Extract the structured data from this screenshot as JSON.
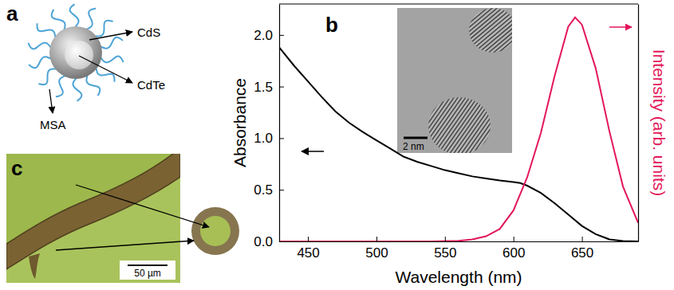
{
  "chart_data": {
    "type": "line",
    "panel_label": "b",
    "x_label": "Wavelength (nm)",
    "y_label": "Absorbance",
    "y2_label": "Intensity (arb. units)",
    "xlim": [
      429,
      691
    ],
    "xticks": [
      450,
      500,
      550,
      600,
      650
    ],
    "ylim": [
      0,
      2.3
    ],
    "yticks": [
      {
        "value": 0,
        "label": "0.0"
      },
      {
        "value": 0.5,
        "label": "0.5"
      },
      {
        "value": 1,
        "label": "1.0"
      },
      {
        "value": 1.5,
        "label": "1.5"
      },
      {
        "value": 2,
        "label": "2.0"
      }
    ],
    "y2lim": [
      0,
      2.3
    ],
    "series": [
      {
        "color": "#000000",
        "x": [
          429,
          440,
          450,
          460,
          470,
          480,
          490,
          500,
          510,
          520,
          530,
          540,
          550,
          560,
          570,
          580,
          590,
          600,
          605,
          610,
          620,
          630,
          640,
          650,
          660,
          670,
          680,
          691
        ],
        "values": [
          1.88,
          1.7,
          1.55,
          1.4,
          1.26,
          1.15,
          1.06,
          0.98,
          0.9,
          0.82,
          0.77,
          0.73,
          0.69,
          0.66,
          0.63,
          0.61,
          0.59,
          0.575,
          0.565,
          0.54,
          0.47,
          0.37,
          0.26,
          0.15,
          0.07,
          0.02,
          0.003,
          0
        ]
      },
      {
        "color": "#e3175a",
        "axis": "y2",
        "x": [
          429,
          540,
          560,
          570,
          580,
          590,
          600,
          610,
          620,
          630,
          640,
          645,
          650,
          660,
          670,
          680,
          691
        ],
        "values": [
          0,
          0,
          0.005,
          0.02,
          0.05,
          0.12,
          0.3,
          0.62,
          1.05,
          1.6,
          2.08,
          2.17,
          2.1,
          1.68,
          1.07,
          0.53,
          0.18
        ]
      }
    ],
    "inset": {
      "scale_bar": "2 nm"
    }
  },
  "panels": {
    "a": {
      "label": "a",
      "labels": [
        "CdS",
        "CdTe",
        "MSA"
      ]
    },
    "c": {
      "label": "c",
      "scale_bar": "50 µm"
    }
  }
}
